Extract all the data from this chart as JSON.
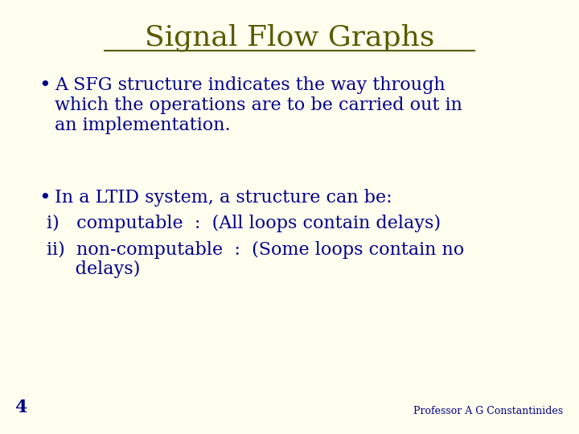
{
  "background_color": "#FFFFF0",
  "title": "Signal Flow Graphs",
  "title_color": "#5a5a00",
  "title_fontsize": 26,
  "text_color": "#00008B",
  "bullet1_line1": "A SFG structure indicates the way through",
  "bullet1_line2": "which the operations are to be carried out in",
  "bullet1_line3": "an implementation.",
  "bullet2": "In a LTID system, a structure can be:",
  "line_i": "i)   computable  :  (All loops contain delays)",
  "line_ii1": "ii)  non-computable  :  (Some loops contain no",
  "line_ii2": "     delays)",
  "page_number": "4",
  "footer": "Professor A G Constantinides",
  "bullet_color": "#00008B",
  "body_fontsize": 16,
  "footer_fontsize": 9,
  "page_fontsize": 16,
  "underline_color": "#5a5a00"
}
